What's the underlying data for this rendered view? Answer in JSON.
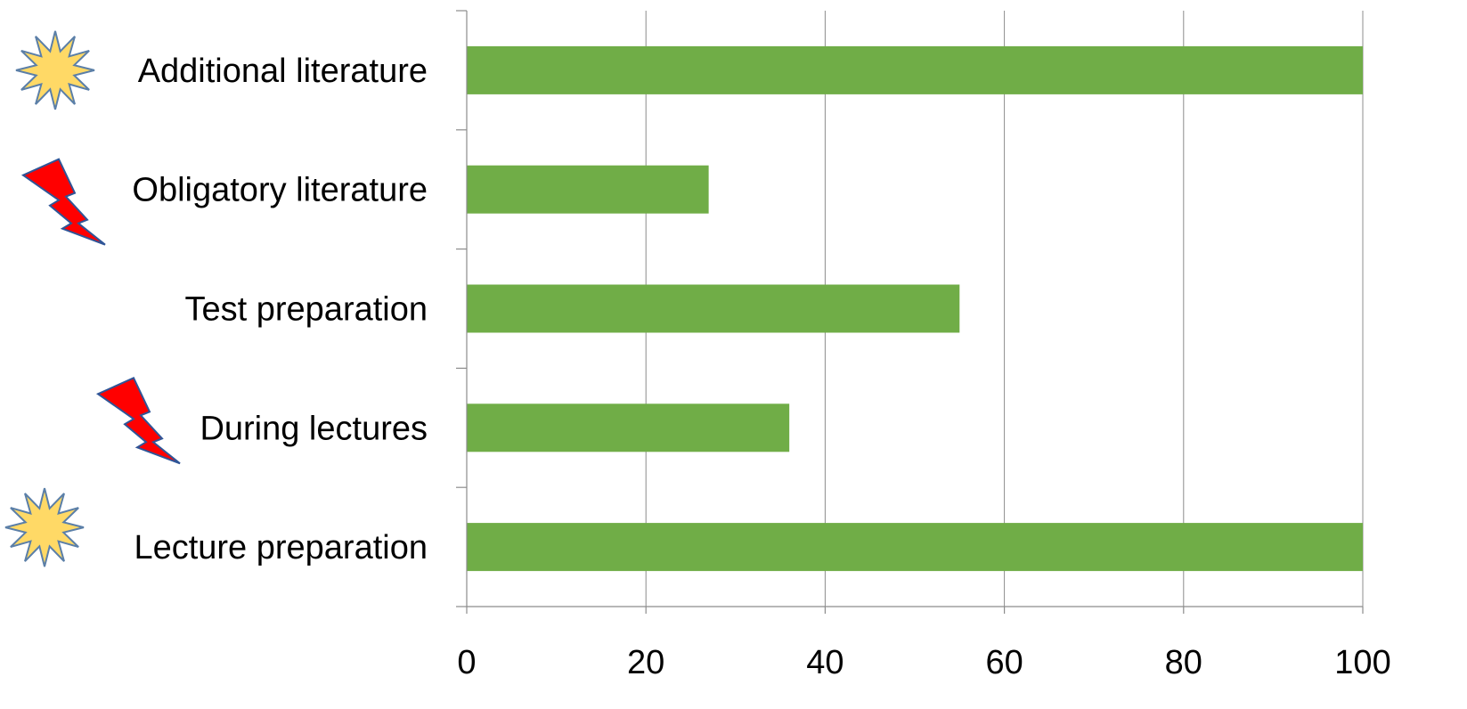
{
  "chart_data": {
    "type": "bar",
    "orientation": "horizontal",
    "categories": [
      "Additional literature",
      "Obligatory literature",
      "Test preparation",
      "During lectures",
      "Lecture preparation"
    ],
    "values": [
      100,
      27,
      55,
      36,
      100
    ],
    "category_icons": [
      "starburst-icon",
      "lightning-icon",
      "",
      "lightning-icon",
      "starburst-icon"
    ],
    "xlim": [
      0,
      100
    ],
    "xticks": [
      "0",
      "20",
      "40",
      "60",
      "80",
      "100"
    ],
    "grid": "vertical",
    "bar_color": "#70ad47",
    "grid_color": "#8c8c8c",
    "starburst_fill": "#ffd966",
    "starburst_stroke": "#5b7fa8",
    "lightning_fill": "#ff0000",
    "lightning_stroke": "#2f5597",
    "title": "",
    "xlabel": "",
    "ylabel": ""
  }
}
